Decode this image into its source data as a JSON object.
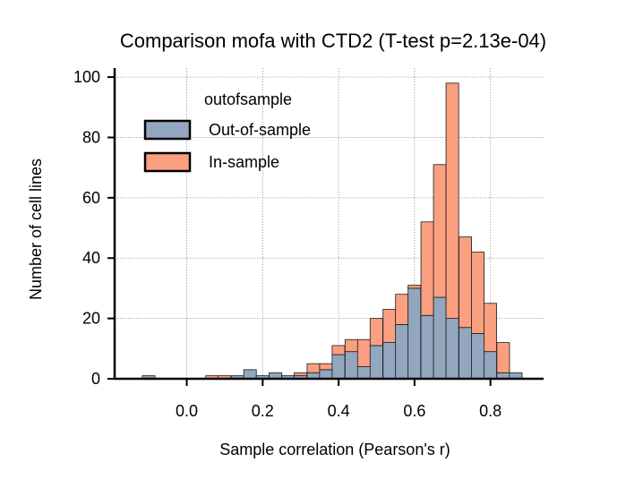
{
  "chart_data": {
    "type": "bar",
    "title": "Comparison mofa with CTD2 (T-test p=2.13e-04)",
    "xlabel": "Sample correlation (Pearson's r)",
    "ylabel": "Number of cell lines",
    "xlim": [
      -0.19,
      0.94
    ],
    "ylim": [
      0,
      103
    ],
    "x_ticks": [
      0.0,
      0.2,
      0.4,
      0.6,
      0.8
    ],
    "x_tick_labels": [
      "0.0",
      "0.2",
      "0.4",
      "0.6",
      "0.8"
    ],
    "y_ticks": [
      0,
      20,
      40,
      60,
      80,
      100
    ],
    "y_tick_labels": [
      "0",
      "20",
      "40",
      "60",
      "80",
      "100"
    ],
    "grid": true,
    "stacked": true,
    "bin_width": 0.0333,
    "bin_left_edges": [
      -0.117,
      -0.083,
      -0.05,
      -0.017,
      0.017,
      0.05,
      0.083,
      0.117,
      0.15,
      0.183,
      0.217,
      0.25,
      0.283,
      0.317,
      0.35,
      0.383,
      0.417,
      0.45,
      0.483,
      0.517,
      0.55,
      0.583,
      0.617,
      0.65,
      0.683,
      0.717,
      0.75,
      0.783,
      0.817,
      0.85
    ],
    "legend": {
      "title": "outofsample",
      "position": "top-left",
      "entries": [
        "Out-of-sample",
        "In-sample"
      ]
    },
    "series": [
      {
        "name": "Out-of-sample",
        "color": "#92a7bf",
        "values": [
          1,
          0,
          0,
          0,
          0,
          0,
          0,
          1,
          3,
          1,
          2,
          1,
          1,
          2,
          3,
          8,
          9,
          4,
          11,
          12,
          18,
          30,
          21,
          27,
          20,
          17,
          15,
          9,
          2,
          2
        ]
      },
      {
        "name": "In-sample",
        "color": "#fa9f80",
        "values": [
          0,
          0,
          0,
          0,
          0,
          1,
          1,
          0,
          0,
          0,
          0,
          0,
          1,
          3,
          2,
          3,
          4,
          9,
          9,
          11,
          10,
          1,
          31,
          44,
          78,
          30,
          27,
          16,
          10,
          0
        ]
      }
    ]
  }
}
